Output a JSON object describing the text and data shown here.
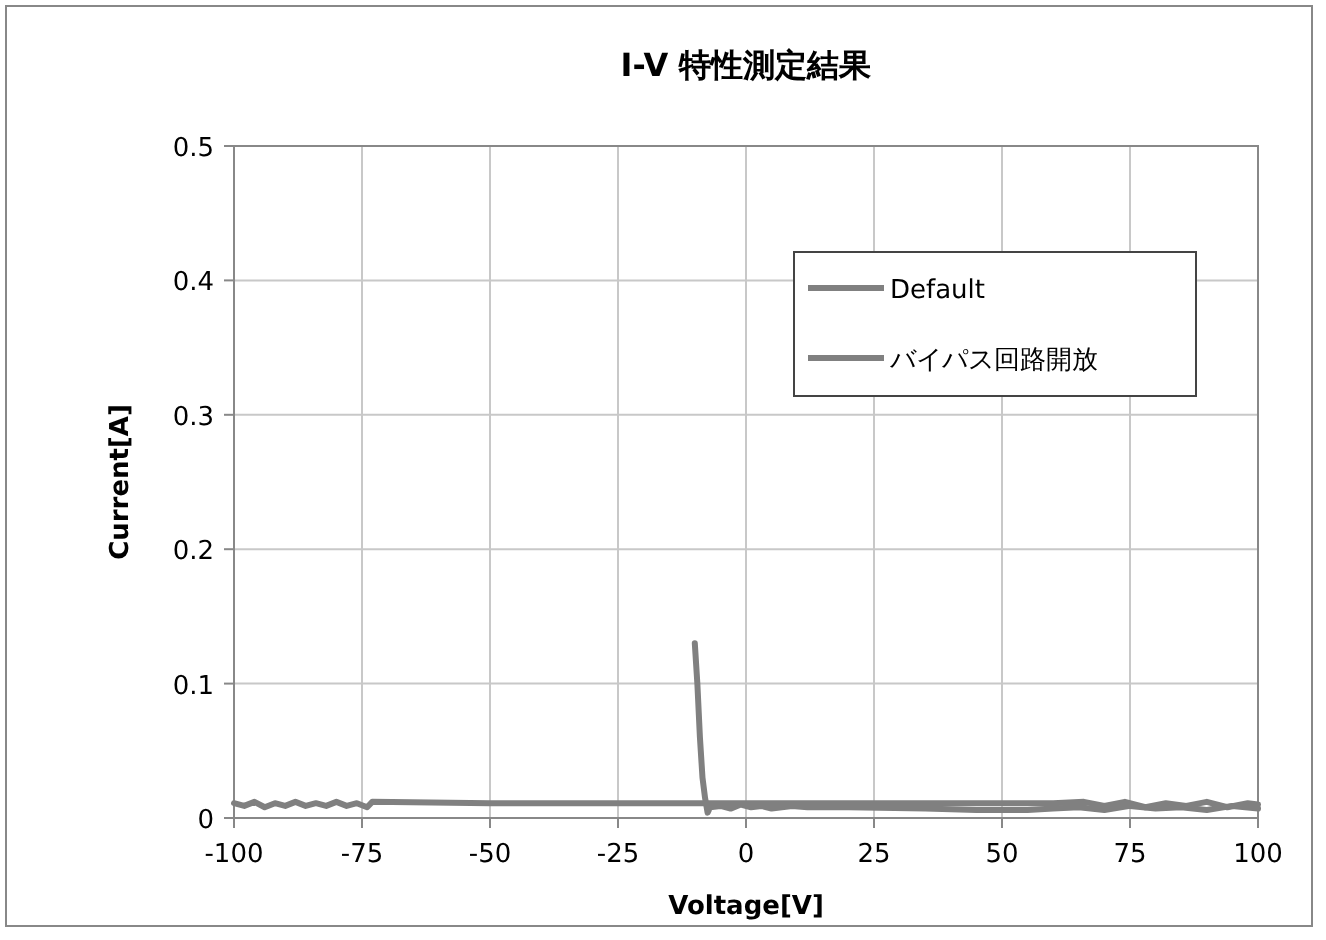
{
  "chart_data": {
    "type": "line",
    "title": "I-V 特性測定結果",
    "xlabel": "Voltage[V]",
    "ylabel": "Current[A]",
    "xlim": [
      -100,
      100
    ],
    "ylim": [
      0,
      0.5
    ],
    "xticks": [
      -100,
      -75,
      -50,
      -25,
      0,
      25,
      50,
      75,
      100
    ],
    "yticks": [
      0,
      0.1,
      0.2,
      0.3,
      0.4,
      0.5
    ],
    "grid": true,
    "legend": "top right",
    "marker": "none",
    "line_style": "solid",
    "series": [
      {
        "name": "Default",
        "color": "#808080",
        "x": [
          -100,
          -98,
          -96,
          -94,
          -92,
          -90,
          -88,
          -86,
          -84,
          -82,
          -80,
          -78,
          -76,
          -74,
          -73,
          -50,
          -25,
          -10,
          0,
          10,
          25,
          35,
          50,
          60,
          66,
          70,
          74,
          78,
          82,
          86,
          90,
          94,
          98,
          100
        ],
        "values": [
          0.011,
          0.009,
          0.012,
          0.008,
          0.011,
          0.009,
          0.012,
          0.009,
          0.011,
          0.009,
          0.012,
          0.009,
          0.011,
          0.008,
          0.012,
          0.011,
          0.011,
          0.011,
          0.011,
          0.011,
          0.011,
          0.011,
          0.011,
          0.011,
          0.012,
          0.009,
          0.012,
          0.008,
          0.011,
          0.009,
          0.012,
          0.008,
          0.011,
          0.01
        ]
      },
      {
        "name": "バイパス回路開放",
        "color": "#808080",
        "x": [
          -10,
          -9.5,
          -9,
          -8.5,
          -8,
          -7.5,
          -7,
          -5,
          -3,
          -1,
          1,
          3,
          5,
          7,
          9,
          12,
          20,
          35,
          45,
          55,
          60,
          65,
          70,
          75,
          80,
          85,
          90,
          95,
          100
        ],
        "values": [
          0.13,
          0.1,
          0.06,
          0.03,
          0.015,
          0.004,
          0.008,
          0.009,
          0.007,
          0.01,
          0.008,
          0.009,
          0.007,
          0.008,
          0.009,
          0.008,
          0.008,
          0.007,
          0.006,
          0.006,
          0.007,
          0.008,
          0.006,
          0.009,
          0.007,
          0.008,
          0.006,
          0.009,
          0.007
        ]
      }
    ]
  }
}
